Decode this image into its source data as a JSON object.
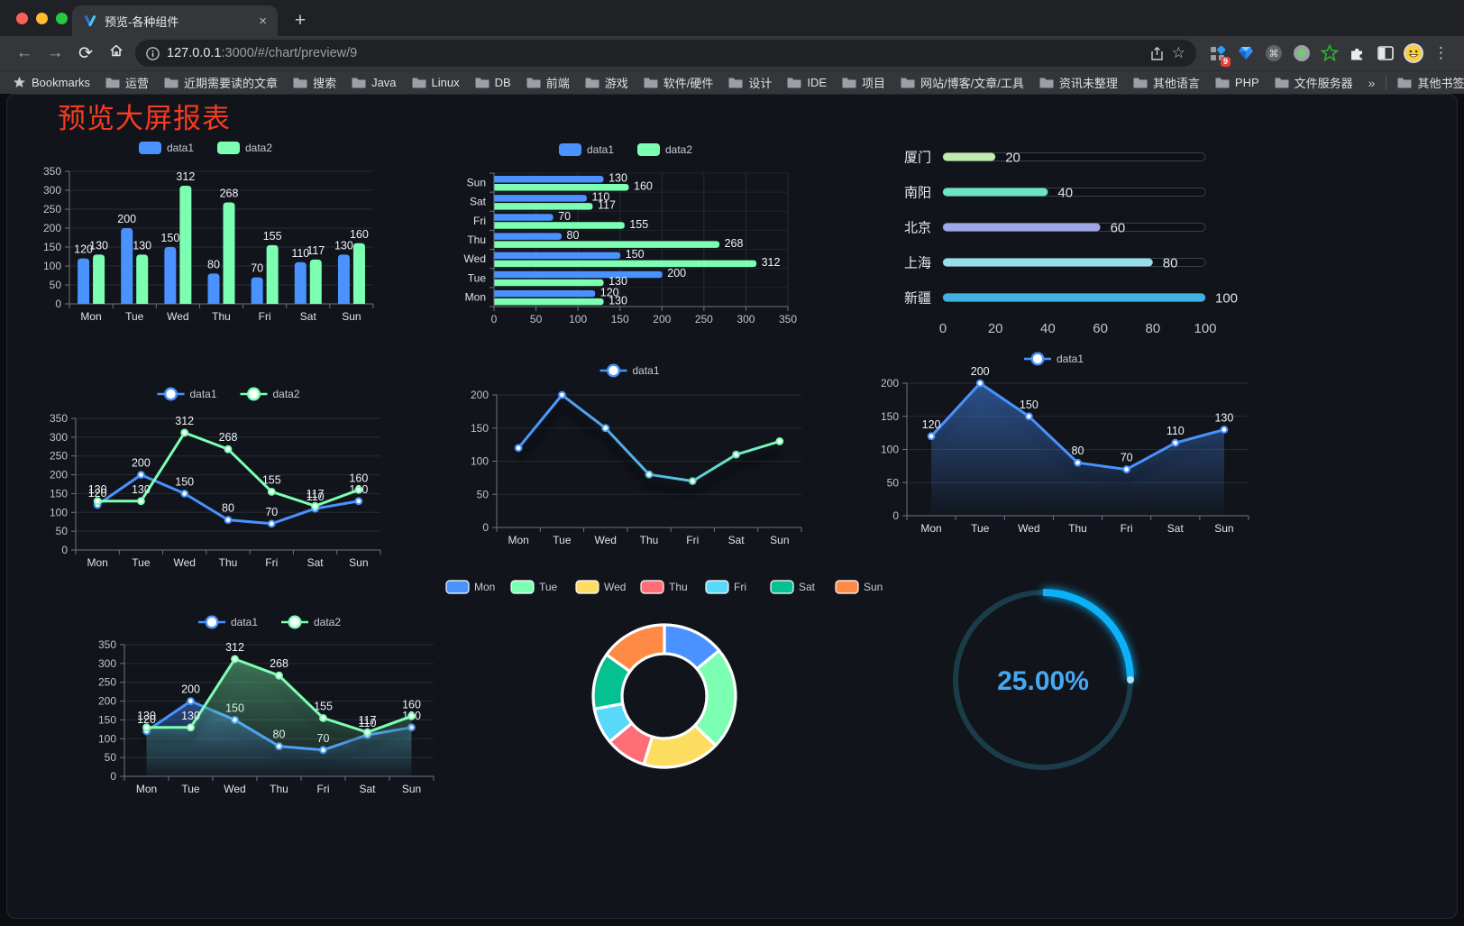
{
  "browser": {
    "traffic_lights": [
      "#ff5f57",
      "#febc2e",
      "#28c840"
    ],
    "tab": {
      "title": "预览-各种组件"
    },
    "icons": {
      "back": "←",
      "forward": "→",
      "reload": "⟳",
      "star": "☆",
      "menu": "⋮",
      "close": "×",
      "new_tab": "+",
      "overflow": "»"
    },
    "url": {
      "host": "127.0.0.1",
      "path": ":3000/#/chart/preview/9"
    },
    "bookmarks_label": "Bookmarks",
    "bookmarks": [
      "运营",
      "近期需要读的文章",
      "搜索",
      "Java",
      "Linux",
      "DB",
      "前端",
      "游戏",
      "软件/硬件",
      "设计",
      "IDE",
      "项目",
      "网站/博客/文章/工具",
      "资讯未整理",
      "其他语言",
      "PHP",
      "文件服务器"
    ],
    "other_bookmarks": "其他书签",
    "extension_badge": "9"
  },
  "page": {
    "title": "预览大屏报表",
    "title_color": "#f63b22",
    "background": "#11141b"
  },
  "chart_data": [
    {
      "id": "grouped-bar",
      "type": "bar",
      "categories": [
        "Mon",
        "Tue",
        "Wed",
        "Thu",
        "Fri",
        "Sat",
        "Sun"
      ],
      "series": [
        {
          "name": "data1",
          "color": "#4992ff",
          "values": [
            120,
            200,
            150,
            80,
            70,
            110,
            130
          ]
        },
        {
          "name": "data2",
          "color": "#7cffb2",
          "values": [
            130,
            130,
            312,
            268,
            155,
            117,
            160
          ]
        }
      ],
      "ylim": [
        0,
        350
      ],
      "yticks": [
        0,
        50,
        100,
        150,
        200,
        250,
        300,
        350
      ],
      "value_labels": true,
      "legend_position": "top",
      "grid": true
    },
    {
      "id": "horizontal-bar",
      "type": "bar",
      "orientation": "horizontal",
      "categories_top_to_bottom": [
        "Sun",
        "Sat",
        "Fri",
        "Thu",
        "Wed",
        "Tue",
        "Mon"
      ],
      "series": [
        {
          "name": "data1",
          "color": "#4992ff",
          "values_top_to_bottom": [
            130,
            110,
            70,
            80,
            150,
            200,
            120
          ]
        },
        {
          "name": "data2",
          "color": "#7cffb2",
          "values_top_to_bottom": [
            160,
            117,
            155,
            268,
            312,
            130,
            130
          ]
        }
      ],
      "xlim": [
        0,
        350
      ],
      "xticks": [
        0,
        50,
        100,
        150,
        200,
        250,
        300,
        350
      ],
      "value_labels": true,
      "legend_position": "top",
      "grid": true
    },
    {
      "id": "progress-bars",
      "type": "bar",
      "orientation": "horizontal",
      "style": "capsule",
      "categories": [
        "厦门",
        "南阳",
        "北京",
        "上海",
        "新疆"
      ],
      "values": [
        20,
        40,
        60,
        80,
        100
      ],
      "colors": [
        "#c4ebad",
        "#6be6c1",
        "#a0a7e6",
        "#96dee8",
        "#3fb1e3"
      ],
      "xlim": [
        0,
        100
      ],
      "xticks": [
        0,
        20,
        40,
        60,
        80,
        100
      ],
      "value_labels": true
    },
    {
      "id": "dual-line",
      "type": "line",
      "categories": [
        "Mon",
        "Tue",
        "Wed",
        "Thu",
        "Fri",
        "Sat",
        "Sun"
      ],
      "series": [
        {
          "name": "data1",
          "color": "#4992ff",
          "values": [
            120,
            200,
            150,
            80,
            70,
            110,
            130
          ]
        },
        {
          "name": "data2",
          "color": "#7cffb2",
          "values": [
            130,
            130,
            312,
            268,
            155,
            117,
            160
          ]
        }
      ],
      "ylim": [
        0,
        350
      ],
      "yticks": [
        0,
        50,
        100,
        150,
        200,
        250,
        300,
        350
      ],
      "value_labels": true,
      "legend_position": "top",
      "grid": true
    },
    {
      "id": "gradient-line",
      "type": "line",
      "categories": [
        "Mon",
        "Tue",
        "Wed",
        "Thu",
        "Fri",
        "Sat",
        "Sun"
      ],
      "series": [
        {
          "name": "data1",
          "color": "#4992ff",
          "color_gradient": [
            "#4992ff",
            "#7cffb2"
          ],
          "values": [
            120,
            200,
            150,
            80,
            70,
            110,
            130
          ]
        }
      ],
      "ylim": [
        0,
        200
      ],
      "yticks": [
        0,
        50,
        100,
        150,
        200
      ],
      "value_labels": false,
      "legend_position": "top",
      "grid": true
    },
    {
      "id": "area-line",
      "type": "area",
      "categories": [
        "Mon",
        "Tue",
        "Wed",
        "Thu",
        "Fri",
        "Sat",
        "Sun"
      ],
      "series": [
        {
          "name": "data1",
          "color": "#4992ff",
          "values": [
            120,
            200,
            150,
            80,
            70,
            110,
            130
          ]
        }
      ],
      "ylim": [
        0,
        200
      ],
      "yticks": [
        0,
        50,
        100,
        150,
        200
      ],
      "value_labels": true,
      "legend_position": "top",
      "grid": true
    },
    {
      "id": "dual-area-line",
      "type": "area",
      "categories": [
        "Mon",
        "Tue",
        "Wed",
        "Thu",
        "Fri",
        "Sat",
        "Sun"
      ],
      "series": [
        {
          "name": "data1",
          "color": "#4992ff",
          "values": [
            120,
            200,
            150,
            80,
            70,
            110,
            130
          ]
        },
        {
          "name": "data2",
          "color": "#7cffb2",
          "values": [
            130,
            130,
            312,
            268,
            155,
            117,
            160
          ]
        }
      ],
      "ylim": [
        0,
        350
      ],
      "yticks": [
        0,
        50,
        100,
        150,
        200,
        250,
        300,
        350
      ],
      "value_labels": true,
      "legend_position": "top",
      "grid": true
    },
    {
      "id": "donut-pie",
      "type": "pie",
      "inner_radius_ratio": 0.59,
      "legend_position": "top",
      "slices": [
        {
          "name": "Mon",
          "value": 120,
          "color": "#4992ff"
        },
        {
          "name": "Tue",
          "value": 200,
          "color": "#7cffb2"
        },
        {
          "name": "Wed",
          "value": 150,
          "color": "#fddd60"
        },
        {
          "name": "Thu",
          "value": 80,
          "color": "#ff6e76"
        },
        {
          "name": "Fri",
          "value": 70,
          "color": "#58d9f9"
        },
        {
          "name": "Sat",
          "value": 110,
          "color": "#05c091"
        },
        {
          "name": "Sun",
          "value": 130,
          "color": "#ff8a45"
        }
      ]
    },
    {
      "id": "gauge",
      "type": "gauge",
      "percent": 25,
      "value_label": "25.00%",
      "progress_color": "#0fb1f7",
      "track_color": "#1b3d4a",
      "text_color": "#47a8f2"
    }
  ]
}
